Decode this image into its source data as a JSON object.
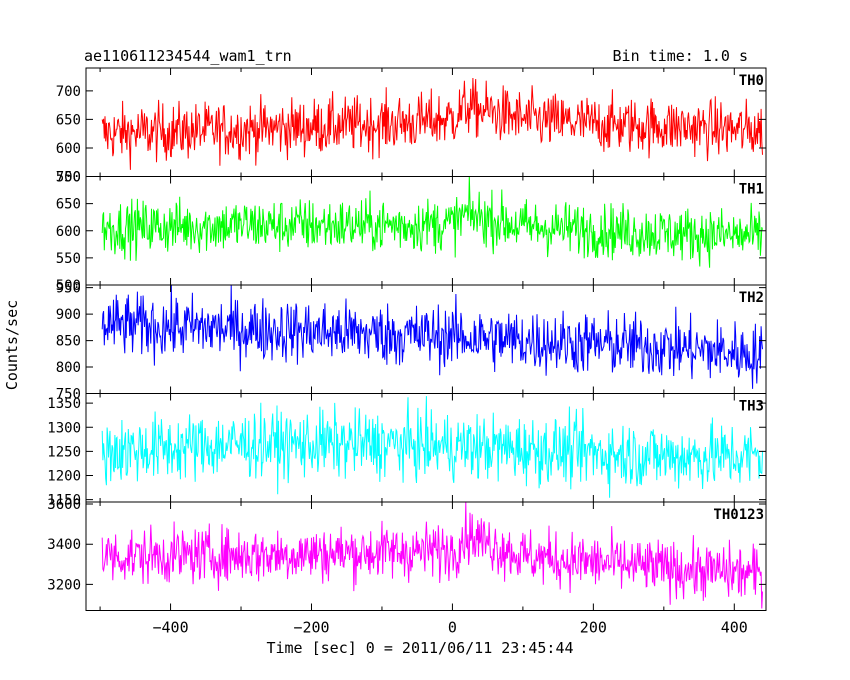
{
  "chart_data": {
    "type": "line",
    "title_left": "ae110611234544_wam1_trn",
    "title_right": "Bin time: 1.0 s",
    "xlabel": "Time [sec] 0 = 2011/06/11 23:45:44",
    "ylabel": "Counts/sec",
    "xlim": [
      -520,
      445
    ],
    "x_range": [
      -497,
      440
    ],
    "bin_time": 1.0,
    "x_ticks": [
      -400,
      -200,
      0,
      200,
      400
    ],
    "x_tick_labels": [
      "−400",
      "−200",
      "0",
      "200",
      "400"
    ],
    "panels": [
      {
        "name": "TH0",
        "color": "#ff0000",
        "ylim": [
          550,
          740
        ],
        "y_ticks": [
          550,
          600,
          650,
          700
        ],
        "y_tick_labels": [
          "550",
          "600",
          "650",
          "700"
        ],
        "trend_x": [
          -497,
          -300,
          -150,
          -50,
          0,
          20,
          100,
          200,
          300,
          440
        ],
        "trend_y": [
          625,
          632,
          640,
          645,
          652,
          672,
          650,
          642,
          638,
          630
        ],
        "noise": 25
      },
      {
        "name": "TH1",
        "color": "#00ff00",
        "ylim": [
          500,
          700
        ],
        "y_ticks": [
          500,
          550,
          600,
          650,
          700
        ],
        "y_tick_labels": [
          "500",
          "550",
          "600",
          "650",
          "700"
        ],
        "trend_x": [
          -497,
          -300,
          -100,
          0,
          20,
          100,
          300,
          440
        ],
        "trend_y": [
          605,
          610,
          610,
          612,
          630,
          608,
          595,
          590
        ],
        "noise": 25
      },
      {
        "name": "TH2",
        "color": "#0000ff",
        "ylim": [
          750,
          955
        ],
        "y_ticks": [
          750,
          800,
          850,
          900,
          950
        ],
        "y_tick_labels": [
          "750",
          "800",
          "850",
          "900",
          "950"
        ],
        "trend_x": [
          -497,
          -300,
          -100,
          0,
          100,
          300,
          440
        ],
        "trend_y": [
          880,
          872,
          862,
          858,
          850,
          838,
          822
        ],
        "noise": 30
      },
      {
        "name": "TH3",
        "color": "#00ffff",
        "ylim": [
          1145,
          1370
        ],
        "y_ticks": [
          1150,
          1200,
          1250,
          1300,
          1350
        ],
        "y_tick_labels": [
          "1150",
          "1200",
          "1250",
          "1300",
          "1350"
        ],
        "trend_x": [
          -497,
          -300,
          -100,
          0,
          100,
          300,
          440
        ],
        "trend_y": [
          1250,
          1265,
          1265,
          1260,
          1255,
          1240,
          1240
        ],
        "noise": 35
      },
      {
        "name": "TH0123",
        "color": "#ff00ff",
        "ylim": [
          3070,
          3610
        ],
        "y_ticks": [
          3200,
          3400,
          3600
        ],
        "y_tick_labels": [
          "3200",
          "3400",
          "3600"
        ],
        "trend_x": [
          -497,
          -300,
          -100,
          0,
          20,
          100,
          200,
          300,
          440
        ],
        "trend_y": [
          3340,
          3345,
          3360,
          3370,
          3450,
          3340,
          3310,
          3280,
          3250
        ],
        "noise": 70
      }
    ]
  }
}
